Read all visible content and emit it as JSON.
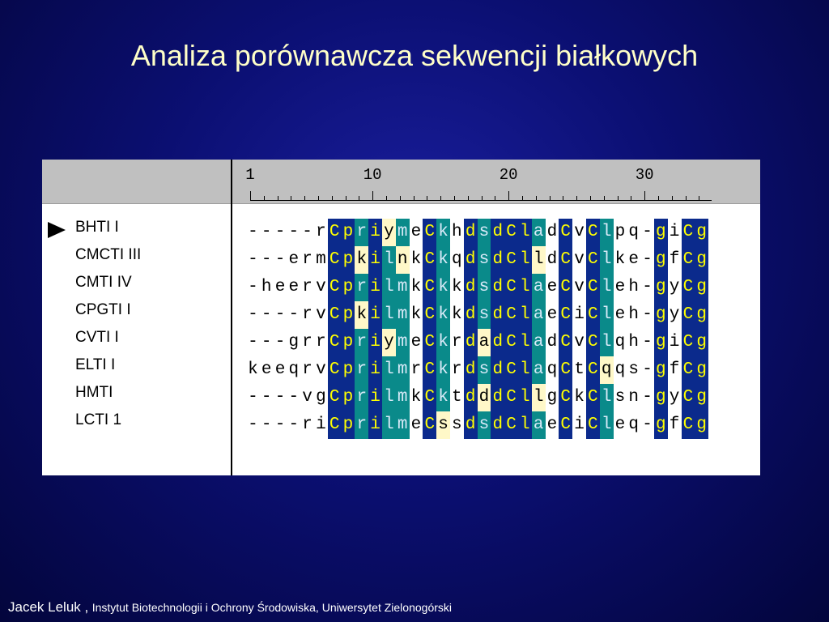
{
  "slide": {
    "title": "Analiza porównawcza sekwencji białkowych"
  },
  "ruler": {
    "labels": [
      "1",
      "10",
      "20",
      "30"
    ]
  },
  "alignment": {
    "selected_row": 0,
    "rows": [
      {
        "name": "BHTI I",
        "sequence": "-----rCpriymeCkhdsdCladCvClpq-giCg"
      },
      {
        "name": "CMCTI III",
        "sequence": "---ermCpkilnkCkqdsdClldCvClke-gfCg"
      },
      {
        "name": "CMTI IV",
        "sequence": "-heervCprilmkCkkdsdClaeCvCleh-gyCg"
      },
      {
        "name": "CPGTI I",
        "sequence": "----rvCpkilmkCkkdsdClaeCiCleh-gyCg"
      },
      {
        "name": "CVTI I",
        "sequence": "---grrCpriymeCkrdadCladCvClqh-giCg"
      },
      {
        "name": "ELTI I",
        "sequence": "keeqrvCprilmrCkrdsdClaqCtCqqs-gfCg"
      },
      {
        "name": "HMTI",
        "sequence": "----vgCprilmkCktdddCllgCkClsn-gyCg"
      },
      {
        "name": "LCTI 1",
        "sequence": "----riCprilmeCssdsdClaeCiCleq-gfCg"
      }
    ]
  },
  "colors": {
    "background": "#0b0f72",
    "title": "#ffffc8",
    "identical_column": "#0b2a8c",
    "identical_text": "#ffff00",
    "conserved_column": "#0a8a8a",
    "conserved_text": "#d8eaf8",
    "similar_residue": "#fff8c8"
  },
  "footer": {
    "author": "Jacek Leluk ,",
    "affiliation": "Instytut Biotechnologii i Ochrony Środowiska, Uniwersytet Zielonogórski"
  }
}
